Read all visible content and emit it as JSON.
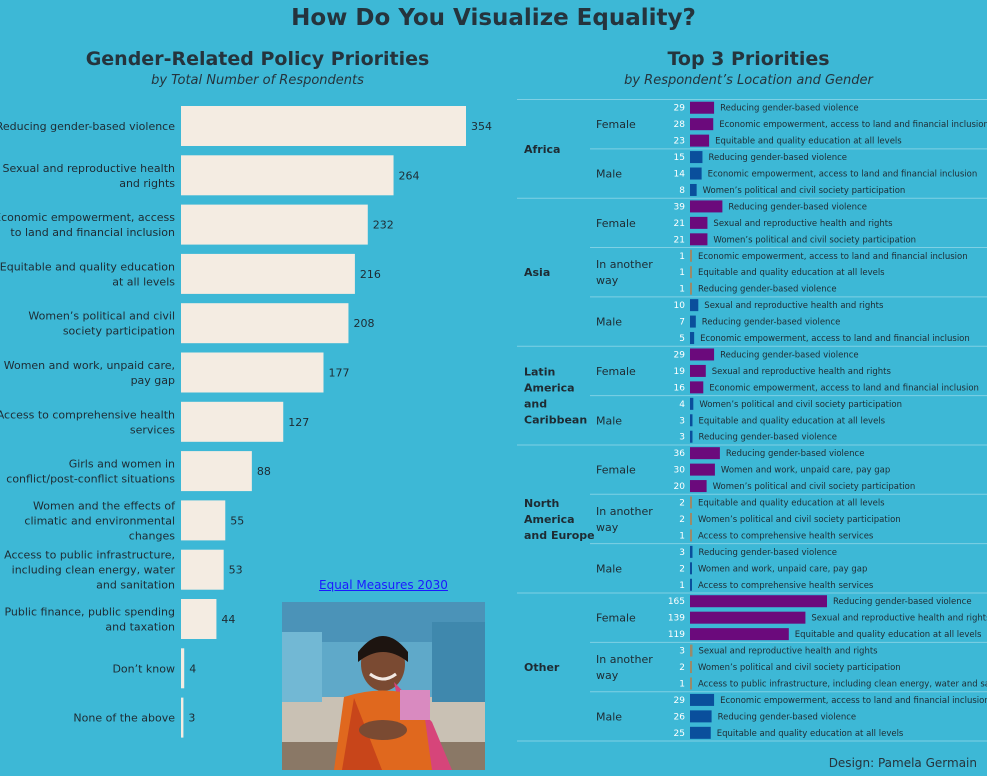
{
  "main_title": "How Do You Visualize Equality?",
  "left_panel": {
    "title": "Gender-Related Policy Priorities",
    "subtitle": "by Total Number of Respondents"
  },
  "right_panel": {
    "title": "Top 3 Priorities",
    "subtitle": "by Respondent’s Location and Gender"
  },
  "credit_link": "Equal Measures 2030",
  "design_credit": "Design: Pamela Germain",
  "photo": {
    "icon": "woman-portrait-photo"
  },
  "colors": {
    "background": "#3db8d6",
    "left_bar": "#f4ece2",
    "female": "#6b0a7c",
    "male": "#0a4f9c",
    "another_way": "#9a8a6a"
  },
  "chart_data": [
    {
      "type": "bar",
      "orientation": "horizontal",
      "title": "Gender-Related Policy Priorities",
      "subtitle": "by Total Number of Respondents",
      "categories": [
        "Reducing gender-based violence",
        "Sexual and reproductive health and rights",
        "Economic empowerment, access to land and financial inclusion",
        "Equitable and quality education at all levels",
        "Women’s political and civil society participation",
        "Women and work, unpaid care, pay gap",
        "Access to comprehensive health services",
        "Girls and women in conflict/post-conflict situations",
        "Women and the effects of climatic and environmental changes",
        "Access to public infrastructure, including clean energy, water and sanitation",
        "Public finance, public spending and taxation",
        "Don’t know",
        "None of the above"
      ],
      "label_lines": [
        [
          "Reducing gender-based violence"
        ],
        [
          "Sexual and reproductive health",
          "and rights"
        ],
        [
          "Economic empowerment, access",
          "to land and financial inclusion"
        ],
        [
          "Equitable and quality education",
          "at all levels"
        ],
        [
          "Women’s political and civil",
          "society participation"
        ],
        [
          "Women and work, unpaid care,",
          "pay gap"
        ],
        [
          "Access to comprehensive health",
          "services"
        ],
        [
          "Girls and women in",
          "conflict/post-conflict situations"
        ],
        [
          "Women and the effects of",
          "climatic and environmental",
          "changes"
        ],
        [
          "Access to public infrastructure,",
          "including clean energy, water",
          "and sanitation"
        ],
        [
          "Public finance, public spending",
          "and taxation"
        ],
        [
          "Don’t know"
        ],
        [
          "None of the above"
        ]
      ],
      "values": [
        354,
        264,
        232,
        216,
        208,
        177,
        127,
        88,
        55,
        53,
        44,
        4,
        3
      ]
    },
    {
      "type": "bar",
      "orientation": "horizontal",
      "title": "Top 3 Priorities",
      "subtitle": "by Respondent’s Location and Gender",
      "regions": [
        {
          "name": [
            "Africa"
          ],
          "groups": [
            {
              "gender": "Female",
              "label_lines": [
                "Female"
              ],
              "items": [
                {
                  "value": 29,
                  "label": "Reducing gender-based violence"
                },
                {
                  "value": 28,
                  "label": "Economic empowerment, access to land and financial inclusion"
                },
                {
                  "value": 23,
                  "label": "Equitable and quality education at all levels"
                }
              ]
            },
            {
              "gender": "Male",
              "label_lines": [
                "Male"
              ],
              "items": [
                {
                  "value": 15,
                  "label": "Reducing gender-based violence"
                },
                {
                  "value": 14,
                  "label": "Economic empowerment, access to land and financial inclusion"
                },
                {
                  "value": 8,
                  "label": "Women’s political and civil society participation"
                }
              ]
            }
          ]
        },
        {
          "name": [
            "Asia"
          ],
          "groups": [
            {
              "gender": "Female",
              "label_lines": [
                "Female"
              ],
              "items": [
                {
                  "value": 39,
                  "label": "Reducing gender-based violence"
                },
                {
                  "value": 21,
                  "label": "Sexual and reproductive health and rights"
                },
                {
                  "value": 21,
                  "label": "Women’s political and civil society participation"
                }
              ]
            },
            {
              "gender": "Another",
              "label_lines": [
                "In another",
                "way"
              ],
              "items": [
                {
                  "value": 1,
                  "label": "Economic empowerment, access to land and financial inclusion"
                },
                {
                  "value": 1,
                  "label": "Equitable and quality education at all levels"
                },
                {
                  "value": 1,
                  "label": "Reducing gender-based violence"
                }
              ]
            },
            {
              "gender": "Male",
              "label_lines": [
                "Male"
              ],
              "items": [
                {
                  "value": 10,
                  "label": "Sexual and reproductive health and rights"
                },
                {
                  "value": 7,
                  "label": "Reducing gender-based violence"
                },
                {
                  "value": 5,
                  "label": "Economic empowerment, access to land and financial inclusion"
                }
              ]
            }
          ]
        },
        {
          "name": [
            "Latin",
            "America",
            "and",
            "Caribbean"
          ],
          "groups": [
            {
              "gender": "Female",
              "label_lines": [
                "Female"
              ],
              "items": [
                {
                  "value": 29,
                  "label": "Reducing gender-based violence"
                },
                {
                  "value": 19,
                  "label": "Sexual and reproductive health and rights"
                },
                {
                  "value": 16,
                  "label": "Economic empowerment, access to land and financial inclusion"
                }
              ]
            },
            {
              "gender": "Male",
              "label_lines": [
                "Male"
              ],
              "items": [
                {
                  "value": 4,
                  "label": "Women’s political and civil society participation"
                },
                {
                  "value": 3,
                  "label": "Equitable and quality education at all levels"
                },
                {
                  "value": 3,
                  "label": "Reducing gender-based violence"
                }
              ]
            }
          ]
        },
        {
          "name": [
            "North",
            "America",
            "and Europe"
          ],
          "groups": [
            {
              "gender": "Female",
              "label_lines": [
                "Female"
              ],
              "items": [
                {
                  "value": 36,
                  "label": "Reducing gender-based violence"
                },
                {
                  "value": 30,
                  "label": "Women and work, unpaid care, pay gap"
                },
                {
                  "value": 20,
                  "label": "Women’s political and civil society participation"
                }
              ]
            },
            {
              "gender": "Another",
              "label_lines": [
                "In another",
                "way"
              ],
              "items": [
                {
                  "value": 2,
                  "label": "Equitable and quality education at all levels"
                },
                {
                  "value": 2,
                  "label": "Women’s political and civil society participation"
                },
                {
                  "value": 1,
                  "label": "Access to comprehensive health services"
                }
              ]
            },
            {
              "gender": "Male",
              "label_lines": [
                "Male"
              ],
              "items": [
                {
                  "value": 3,
                  "label": "Reducing gender-based violence"
                },
                {
                  "value": 2,
                  "label": "Women and work, unpaid care, pay gap"
                },
                {
                  "value": 1,
                  "label": "Access to comprehensive health services"
                }
              ]
            }
          ]
        },
        {
          "name": [
            "Other"
          ],
          "groups": [
            {
              "gender": "Female",
              "label_lines": [
                "Female"
              ],
              "items": [
                {
                  "value": 165,
                  "label": "Reducing gender-based violence"
                },
                {
                  "value": 139,
                  "label": "Sexual and reproductive health and rights"
                },
                {
                  "value": 119,
                  "label": "Equitable and quality education at all levels"
                }
              ]
            },
            {
              "gender": "Another",
              "label_lines": [
                "In another",
                "way"
              ],
              "items": [
                {
                  "value": 3,
                  "label": "Sexual and reproductive health and rights"
                },
                {
                  "value": 2,
                  "label": "Women’s political and civil society participation"
                },
                {
                  "value": 1,
                  "label": "Access to public infrastructure, including clean energy, water and sanitation"
                }
              ]
            },
            {
              "gender": "Male",
              "label_lines": [
                "Male"
              ],
              "items": [
                {
                  "value": 29,
                  "label": "Economic empowerment, access to land and financial inclusion"
                },
                {
                  "value": 26,
                  "label": "Reducing gender-based violence"
                },
                {
                  "value": 25,
                  "label": "Equitable and quality education at all levels"
                }
              ]
            }
          ]
        }
      ]
    }
  ]
}
